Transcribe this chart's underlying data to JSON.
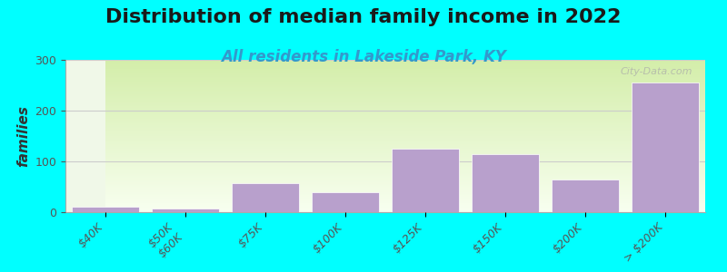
{
  "title": "Distribution of median family income in 2022",
  "subtitle": "All residents in Lakeside Park, KY",
  "xlabel": "",
  "ylabel": "families",
  "background_color": "#00FFFF",
  "plot_bg_gradient_top": "#e8f5d0",
  "plot_bg_gradient_bottom": "#f5ffe8",
  "bar_color": "#b8a0cc",
  "bar_edge_color": "#ffffff",
  "categories": [
    "$40K",
    "$50K\n$60K",
    "$75K",
    "$100K",
    "$125K",
    "$150K",
    "$200K",
    "> $200K"
  ],
  "values": [
    10,
    8,
    57,
    40,
    125,
    115,
    65,
    255
  ],
  "ylim": [
    0,
    300
  ],
  "yticks": [
    0,
    100,
    200,
    300
  ],
  "title_fontsize": 16,
  "subtitle_fontsize": 12,
  "ylabel_fontsize": 11,
  "tick_fontsize": 9,
  "watermark": "City-Data.com"
}
